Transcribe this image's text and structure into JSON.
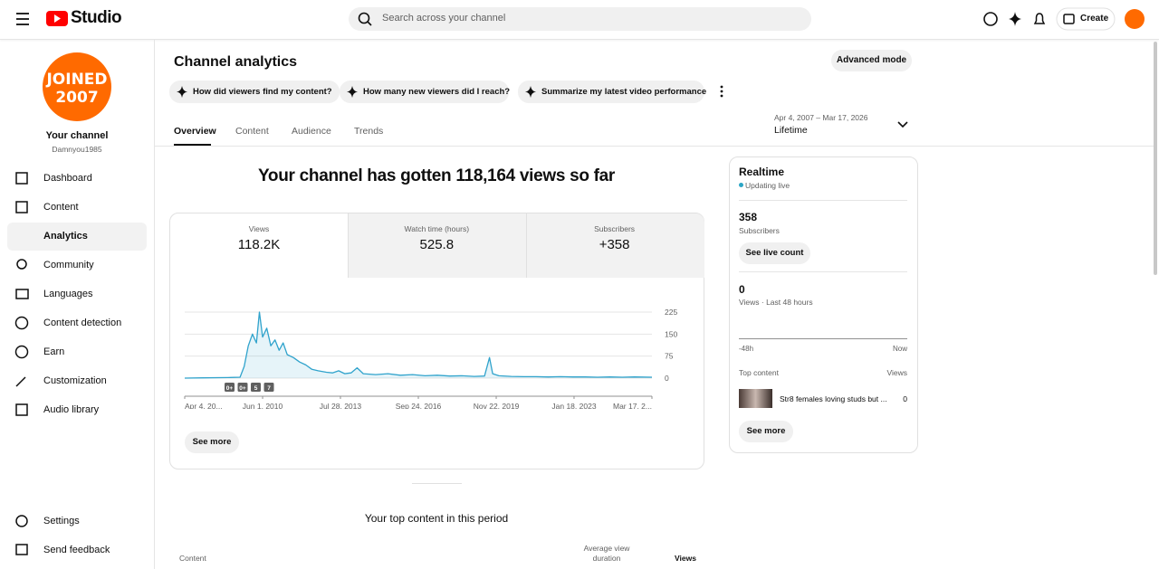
{
  "header": {
    "logo": "Studio",
    "search_placeholder": "Search across your channel",
    "create": "Create"
  },
  "sidebar": {
    "avatar_text": [
      "JOINED",
      "2007"
    ],
    "channel_title": "Your channel",
    "channel_handle": "Damnyou1985",
    "nav": [
      "Dashboard",
      "Content",
      "Analytics",
      "Community",
      "Languages",
      "Content detection",
      "Earn",
      "Customization",
      "Audio library"
    ],
    "active": "Analytics",
    "footer_nav": [
      "Settings",
      "Send feedback"
    ]
  },
  "main": {
    "title": "Channel analytics",
    "advanced_mode": "Advanced mode",
    "prompts": [
      "How did viewers find my content?",
      "How many new viewers did I reach?",
      "Summarize my latest video performance"
    ],
    "tabs": [
      "Overview",
      "Content",
      "Audience",
      "Trends"
    ],
    "date_range": "Apr 4, 2007 – Mar 17, 2026",
    "period": "Lifetime",
    "headline": "Your channel has gotten 118,164 views so far",
    "metrics": [
      {
        "label": "Views",
        "value": "118.2K"
      },
      {
        "label": "Watch time (hours)",
        "value": "525.8"
      },
      {
        "label": "Subscribers",
        "value": "+358"
      }
    ],
    "see_more": "See more",
    "top_content_title": "Your top content in this period",
    "table_headers": [
      "Content",
      "Average view duration",
      "Views"
    ]
  },
  "realtime": {
    "title": "Realtime",
    "status": "Updating live",
    "subscribers": "358",
    "subscribers_label": "Subscribers",
    "see_live_count": "See live count",
    "views": "0",
    "views_label": "Views · Last 48 hours",
    "axis_start": "-48h",
    "axis_end": "Now",
    "top_content": "Top content",
    "top_content_views_header": "Views",
    "top_video": "Str8 females loving studs but ...",
    "top_video_views": "0",
    "see_more": "See more"
  },
  "chart_data": {
    "type": "line",
    "x": [
      "Apr 4, 2007",
      "Jan 1, 2008",
      "Jan 1, 2009",
      "Jul 1, 2009",
      "Sep 1, 2009",
      "Nov 1, 2009",
      "Jan 1, 2010",
      "Mar 1, 2010",
      "Apr 15, 2010",
      "Jun 1, 2010",
      "Aug 1, 2010",
      "Oct 1, 2010",
      "Dec 1, 2010",
      "Feb 1, 2011",
      "Apr 1, 2011",
      "Jun 1, 2011",
      "Sep 1, 2011",
      "Dec 1, 2011",
      "Mar 1, 2012",
      "Jun 1, 2012",
      "Sep 1, 2012",
      "Jan 1, 2013",
      "Apr 1, 2013",
      "Jul 1, 2013",
      "Oct 1, 2013",
      "Jan 1, 2014",
      "Apr 1, 2014",
      "Jul 1, 2014",
      "Jan 1, 2015",
      "Jul 1, 2015",
      "Jan 1, 2016",
      "Jul 1, 2016",
      "Jan 1, 2017",
      "Jul 1, 2017",
      "Jan 1, 2018",
      "Jul 1, 2018",
      "Jan 1, 2019",
      "Jun 1, 2019",
      "Aug 15, 2019",
      "Oct 1, 2019",
      "Jan 1, 2020",
      "Jul 1, 2020",
      "Jan 1, 2021",
      "Jul 1, 2021",
      "Jan 1, 2022",
      "Jul 1, 2022",
      "Jan 1, 2023",
      "Jul 1, 2023",
      "Jan 1, 2024",
      "Jul 1, 2024",
      "Jan 1, 2025",
      "Jul 1, 2025",
      "Mar 17, 2026"
    ],
    "series": [
      {
        "name": "Views",
        "color": "#30a3cc",
        "values": [
          0,
          1,
          2,
          3,
          40,
          110,
          150,
          120,
          225,
          140,
          170,
          110,
          130,
          95,
          120,
          80,
          70,
          55,
          45,
          30,
          25,
          20,
          18,
          25,
          15,
          18,
          35,
          15,
          12,
          15,
          10,
          12,
          8,
          10,
          7,
          8,
          6,
          7,
          70,
          15,
          8,
          6,
          5,
          5,
          4,
          5,
          4,
          4,
          3,
          4,
          3,
          4,
          3
        ]
      }
    ],
    "xlim": [
      "Apr 4, 2007",
      "Mar 17, 2026"
    ],
    "xticks": [
      {
        "value": "Apr 4, 2007",
        "label": "Apr 4, 20..."
      },
      "Jun 1, 2010",
      "Jul 28, 2013",
      "Sep 24, 2016",
      "Nov 22, 2019",
      "Jan 18, 2023",
      {
        "value": "Mar 17, 2026",
        "label": "Mar 17, 2..."
      }
    ],
    "ylim": [
      0,
      225
    ],
    "yticks": [
      0,
      75,
      150,
      225
    ],
    "grid": true,
    "annotations": [
      "0+",
      "0+",
      "5",
      "7"
    ]
  }
}
